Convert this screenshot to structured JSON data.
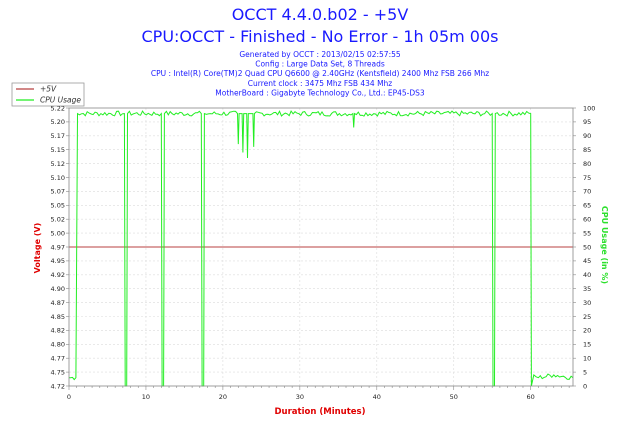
{
  "chart_data": {
    "type": "line",
    "title": "OCCT 4.4.0.b02 - +5V",
    "subtitle": "CPU:OCCT - Finished - No Error - 1h 05m 00s",
    "info_lines": [
      "Generated by OCCT : 2013/02/15 02:57:55",
      "Config : Large Data Set, 8 Threads",
      "CPU : Intel(R) Core(TM)2 Quad CPU Q6600 @ 2.40GHz (Kentsfield) 2400 Mhz FSB 266 Mhz",
      "Current clock : 3475 Mhz FSB 434 Mhz",
      "MotherBoard : Gigabyte Technology Co., Ltd.: EP45-DS3"
    ],
    "xlabel": "Duration (Minutes)",
    "ylabel": "Voltage (V)",
    "y2label": "CPU Usage (in %)",
    "xlim": [
      0,
      65.5
    ],
    "ylim": [
      4.72,
      5.22
    ],
    "y2lim": [
      0,
      100
    ],
    "x_ticks": [
      "0",
      "10",
      "20",
      "30",
      "40",
      "50",
      "60"
    ],
    "y_ticks": [
      "4.72",
      "4.75",
      "4.77",
      "4.80",
      "4.82",
      "4.85",
      "4.87",
      "4.90",
      "4.92",
      "4.95",
      "4.97",
      "5.00",
      "5.02",
      "5.05",
      "5.07",
      "5.10",
      "5.12",
      "5.15",
      "5.17",
      "5.20",
      "5.22"
    ],
    "y2_ticks": [
      "0",
      "5",
      "10",
      "15",
      "20",
      "25",
      "30",
      "35",
      "40",
      "45",
      "50",
      "55",
      "60",
      "65",
      "70",
      "75",
      "80",
      "85",
      "90",
      "95",
      "100"
    ],
    "legend_position": "top-left",
    "grid": true,
    "series": [
      {
        "name": "+5V",
        "color": "#b84040",
        "axis": "left",
        "x": [
          0,
          65.5
        ],
        "y": [
          4.97,
          4.97
        ]
      },
      {
        "name": "CPU Usage",
        "color": "#22ee22",
        "axis": "right",
        "x": [
          0,
          0.9,
          1.1,
          7.2,
          7.3,
          7.5,
          7.6,
          12.0,
          12.1,
          12.3,
          12.4,
          17.2,
          17.3,
          17.5,
          17.6,
          21.9,
          22.0,
          22.1,
          22.5,
          22.6,
          22.7,
          23.1,
          23.2,
          23.3,
          23.9,
          24.0,
          24.1,
          36.9,
          37.0,
          37.1,
          55.0,
          55.1,
          55.3,
          55.4,
          60.0,
          60.1,
          60.4,
          61.0,
          63.0,
          65.5
        ],
        "y": [
          3,
          3,
          98,
          98,
          0,
          0,
          98,
          98,
          0,
          0,
          98,
          98,
          0,
          0,
          98,
          98,
          87,
          98,
          98,
          84,
          98,
          98,
          82,
          98,
          98,
          86,
          98,
          98,
          93,
          98,
          98,
          0,
          0,
          98,
          98,
          0,
          4,
          3,
          4,
          3
        ]
      }
    ]
  }
}
